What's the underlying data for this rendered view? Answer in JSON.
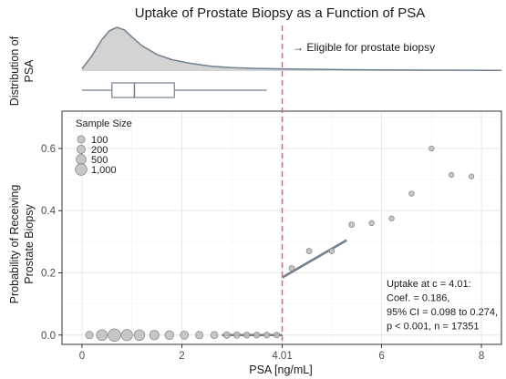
{
  "chart_data": [
    {
      "type": "area",
      "role": "distribution",
      "title": "Uptake of Prostate Biopsy as a Function of PSA",
      "ylabel": "Distribution of PSA",
      "annotation": "→ Eligible for prostate biopsy",
      "fill_color": "#d3d3d3",
      "line_color": "#708090",
      "density": {
        "x": [
          0.0,
          0.2,
          0.4,
          0.55,
          0.7,
          0.85,
          1.0,
          1.2,
          1.5,
          1.8,
          2.2,
          2.6,
          3.0,
          3.5,
          4.0,
          5.0,
          6.0,
          7.0,
          8.4
        ],
        "y": [
          0.05,
          0.35,
          0.72,
          0.92,
          1.0,
          0.94,
          0.78,
          0.58,
          0.38,
          0.26,
          0.17,
          0.11,
          0.08,
          0.06,
          0.05,
          0.035,
          0.025,
          0.02,
          0.015
        ]
      },
      "boxplot": {
        "whisker_low": 0.0,
        "q1": 0.6,
        "median": 1.05,
        "q3": 1.85,
        "whisker_high": 3.7
      }
    },
    {
      "type": "scatter",
      "role": "uptake",
      "xlabel": "PSA [ng/mL]",
      "ylabel": "Probability of Receiving Prostate Biopsy",
      "xlim": [
        -0.4,
        8.4
      ],
      "ylim": [
        -0.03,
        0.72
      ],
      "xticks": [
        0,
        2,
        4.01,
        6,
        8
      ],
      "xtick_labels": [
        "0",
        "2",
        "4.01",
        "6",
        "8"
      ],
      "yticks": [
        0.0,
        0.2,
        0.4,
        0.6
      ],
      "ytick_labels": [
        "0.0",
        "0.2",
        "0.4",
        "0.6"
      ],
      "grid": true,
      "cutoff": 4.01,
      "cutoff_color": "#e8676b",
      "point_color": "#bdbdbd",
      "line_color": "#708090",
      "legend": {
        "title": "Sample Size",
        "placement": "top-left",
        "labels": [
          "100",
          "200",
          "500",
          "1,000"
        ],
        "sizes": [
          100,
          200,
          500,
          1000
        ]
      },
      "points": [
        {
          "x": 0.15,
          "y": 0.0,
          "n": 300
        },
        {
          "x": 0.4,
          "y": 0.0,
          "n": 800
        },
        {
          "x": 0.65,
          "y": 0.0,
          "n": 1100
        },
        {
          "x": 0.9,
          "y": 0.0,
          "n": 850
        },
        {
          "x": 1.15,
          "y": 0.0,
          "n": 750
        },
        {
          "x": 1.45,
          "y": 0.0,
          "n": 550
        },
        {
          "x": 1.75,
          "y": 0.0,
          "n": 450
        },
        {
          "x": 2.05,
          "y": 0.0,
          "n": 380
        },
        {
          "x": 2.35,
          "y": 0.0,
          "n": 300
        },
        {
          "x": 2.65,
          "y": 0.0,
          "n": 250
        },
        {
          "x": 2.9,
          "y": 0.0,
          "n": 200
        },
        {
          "x": 3.1,
          "y": 0.0,
          "n": 180
        },
        {
          "x": 3.3,
          "y": 0.0,
          "n": 160
        },
        {
          "x": 3.5,
          "y": 0.0,
          "n": 150
        },
        {
          "x": 3.7,
          "y": 0.0,
          "n": 140
        },
        {
          "x": 3.9,
          "y": 0.0,
          "n": 130
        },
        {
          "x": 4.2,
          "y": 0.215,
          "n": 110
        },
        {
          "x": 4.55,
          "y": 0.27,
          "n": 110
        },
        {
          "x": 5.0,
          "y": 0.27,
          "n": 100
        },
        {
          "x": 5.4,
          "y": 0.355,
          "n": 110
        },
        {
          "x": 5.8,
          "y": 0.36,
          "n": 90
        },
        {
          "x": 6.2,
          "y": 0.375,
          "n": 90
        },
        {
          "x": 6.6,
          "y": 0.455,
          "n": 90
        },
        {
          "x": 7.0,
          "y": 0.6,
          "n": 90
        },
        {
          "x": 7.4,
          "y": 0.515,
          "n": 80
        },
        {
          "x": 7.8,
          "y": 0.51,
          "n": 80
        }
      ],
      "fit_lines": [
        {
          "x": [
            2.8,
            4.01
          ],
          "y": [
            0.0,
            0.0
          ]
        },
        {
          "x": [
            4.01,
            5.3
          ],
          "y": [
            0.185,
            0.305
          ]
        }
      ],
      "annotation_lines": [
        "Uptake at c = 4.01:",
        "Coef. = 0.186,",
        "95% CI = 0.098 to 0.274,",
        "p < 0.001, n = 17351"
      ]
    }
  ]
}
